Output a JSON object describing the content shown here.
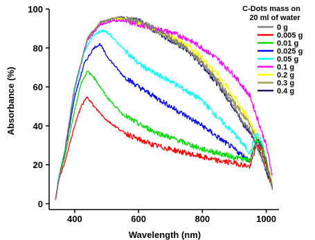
{
  "chart_data": {
    "type": "line",
    "xlabel": "Wavelength (nm)",
    "ylabel": "Absorbance (%)",
    "xlim": [
      320,
      1040
    ],
    "ylim": [
      -3,
      100
    ],
    "xticks": [
      400,
      600,
      800,
      1000
    ],
    "xtick_labels": [
      "400",
      "600",
      "800",
      "1000"
    ],
    "yticks": [
      0,
      20,
      40,
      60,
      80,
      100
    ],
    "ytick_labels": [
      "0",
      "20",
      "40",
      "60",
      "80",
      "100"
    ],
    "grid": false,
    "legend": {
      "placement": "top-right",
      "title_lines": [
        "C-Dots mass on",
        "20 ml of water"
      ]
    },
    "series": [
      {
        "name": "0 g",
        "color": "#808080",
        "x": [
          340,
          350,
          370,
          400,
          440,
          480,
          520,
          545,
          560,
          600,
          650,
          700,
          750,
          800,
          850,
          900,
          930,
          950,
          970,
          985,
          1000,
          1020
        ],
        "y": [
          2,
          12,
          28,
          60,
          85,
          93,
          95,
          96,
          95,
          94,
          90,
          85,
          80,
          72,
          62,
          50,
          41,
          38,
          30,
          24,
          18,
          8
        ]
      },
      {
        "name": "0.005 g",
        "color": "#ff0000",
        "x": [
          340,
          350,
          370,
          400,
          420,
          440,
          460,
          500,
          550,
          600,
          650,
          700,
          750,
          800,
          850,
          900,
          950,
          960,
          970,
          985,
          1000,
          1020
        ],
        "y": [
          2,
          12,
          22,
          40,
          50,
          55,
          50,
          43,
          37,
          33,
          30,
          28,
          26,
          24,
          22,
          21,
          19,
          25,
          30,
          28,
          20,
          8
        ]
      },
      {
        "name": "0.01 g",
        "color": "#00dd00",
        "x": [
          340,
          350,
          370,
          400,
          420,
          440,
          460,
          500,
          550,
          600,
          650,
          700,
          750,
          800,
          850,
          900,
          950,
          960,
          970,
          985,
          1000,
          1020
        ],
        "y": [
          2,
          13,
          25,
          48,
          62,
          68,
          65,
          55,
          46,
          41,
          37,
          34,
          31,
          28,
          26,
          24,
          22,
          28,
          33,
          30,
          22,
          8
        ]
      },
      {
        "name": "0.025 g",
        "color": "#0000ee",
        "x": [
          340,
          350,
          370,
          400,
          430,
          460,
          480,
          500,
          550,
          600,
          650,
          700,
          750,
          800,
          850,
          900,
          950,
          960,
          970,
          985,
          1000,
          1020
        ],
        "y": [
          2,
          13,
          27,
          55,
          72,
          80,
          82,
          76,
          66,
          60,
          55,
          50,
          45,
          40,
          34,
          28,
          22,
          28,
          33,
          30,
          22,
          8
        ]
      },
      {
        "name": "0.05 g",
        "color": "#00ffff",
        "x": [
          340,
          350,
          370,
          400,
          430,
          460,
          490,
          510,
          550,
          600,
          650,
          700,
          750,
          800,
          850,
          900,
          950,
          960,
          970,
          985,
          1000,
          1020
        ],
        "y": [
          2,
          14,
          28,
          58,
          78,
          87,
          89,
          87,
          80,
          72,
          67,
          63,
          58,
          53,
          44,
          36,
          26,
          32,
          36,
          32,
          22,
          8
        ]
      },
      {
        "name": "0.1 g",
        "color": "#ff00ff",
        "x": [
          340,
          350,
          370,
          400,
          440,
          480,
          520,
          550,
          600,
          650,
          700,
          750,
          800,
          850,
          900,
          950,
          980,
          1000,
          1020
        ],
        "y": [
          2,
          12,
          28,
          60,
          84,
          92,
          94,
          94,
          92,
          90,
          88,
          85,
          80,
          74,
          66,
          55,
          40,
          30,
          14
        ]
      },
      {
        "name": "0.2 g",
        "color": "#ffff00",
        "x": [
          340,
          350,
          370,
          400,
          440,
          480,
          520,
          545,
          560,
          600,
          650,
          700,
          750,
          800,
          850,
          900,
          940,
          970,
          985,
          1000,
          1020
        ],
        "y": [
          2,
          12,
          28,
          60,
          85,
          93,
          95,
          95,
          95,
          93,
          90,
          86,
          82,
          75,
          66,
          55,
          45,
          36,
          28,
          22,
          10
        ]
      },
      {
        "name": "0.3 g",
        "color": "#a0a050",
        "x": [
          340,
          350,
          370,
          400,
          440,
          480,
          520,
          545,
          560,
          600,
          650,
          700,
          750,
          800,
          850,
          900,
          940,
          970,
          985,
          1000,
          1020
        ],
        "y": [
          2,
          12,
          28,
          60,
          85,
          93,
          95,
          95,
          95,
          93,
          89,
          85,
          80,
          73,
          63,
          52,
          43,
          34,
          27,
          20,
          9
        ]
      },
      {
        "name": "0.4 g",
        "color": "#1a1a70",
        "x": [
          340,
          350,
          370,
          400,
          440,
          480,
          520,
          545,
          560,
          600,
          650,
          700,
          750,
          800,
          850,
          900,
          930,
          950,
          970,
          985,
          1000,
          1020
        ],
        "y": [
          2,
          12,
          28,
          60,
          85,
          93,
          95,
          96,
          95,
          94,
          89,
          84,
          79,
          71,
          61,
          49,
          40,
          37,
          30,
          24,
          17,
          8
        ]
      }
    ]
  }
}
